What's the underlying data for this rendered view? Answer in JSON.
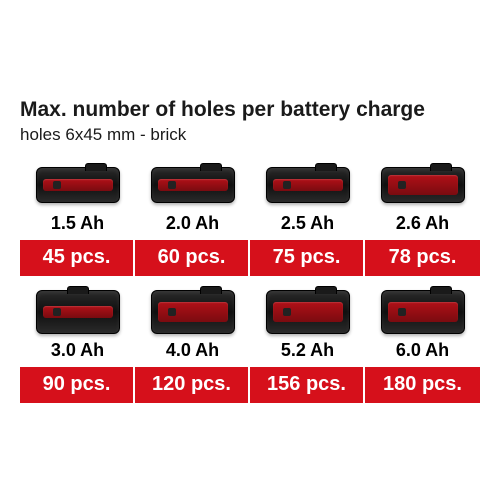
{
  "title": "Max. number of holes per battery charge",
  "subtitle": "holes 6x45 mm - brick",
  "value_row_bg": "#d6101b",
  "batteries": [
    {
      "capacity": "1.5 Ah",
      "value": "45 pcs.",
      "tall": false,
      "stripe": "thin",
      "tab": "right"
    },
    {
      "capacity": "2.0 Ah",
      "value": "60 pcs.",
      "tall": false,
      "stripe": "thin",
      "tab": "right"
    },
    {
      "capacity": "2.5 Ah",
      "value": "75 pcs.",
      "tall": false,
      "stripe": "thin",
      "tab": "right"
    },
    {
      "capacity": "2.6 Ah",
      "value": "78 pcs.",
      "tall": false,
      "stripe": "thick",
      "tab": "right"
    },
    {
      "capacity": "3.0 Ah",
      "value": "90 pcs.",
      "tall": true,
      "stripe": "thin",
      "tab": "left"
    },
    {
      "capacity": "4.0 Ah",
      "value": "120 pcs.",
      "tall": true,
      "stripe": "thick",
      "tab": "right"
    },
    {
      "capacity": "5.2 Ah",
      "value": "156 pcs.",
      "tall": true,
      "stripe": "thick",
      "tab": "right"
    },
    {
      "capacity": "6.0 Ah",
      "value": "180 pcs.",
      "tall": true,
      "stripe": "thick",
      "tab": "right"
    }
  ]
}
